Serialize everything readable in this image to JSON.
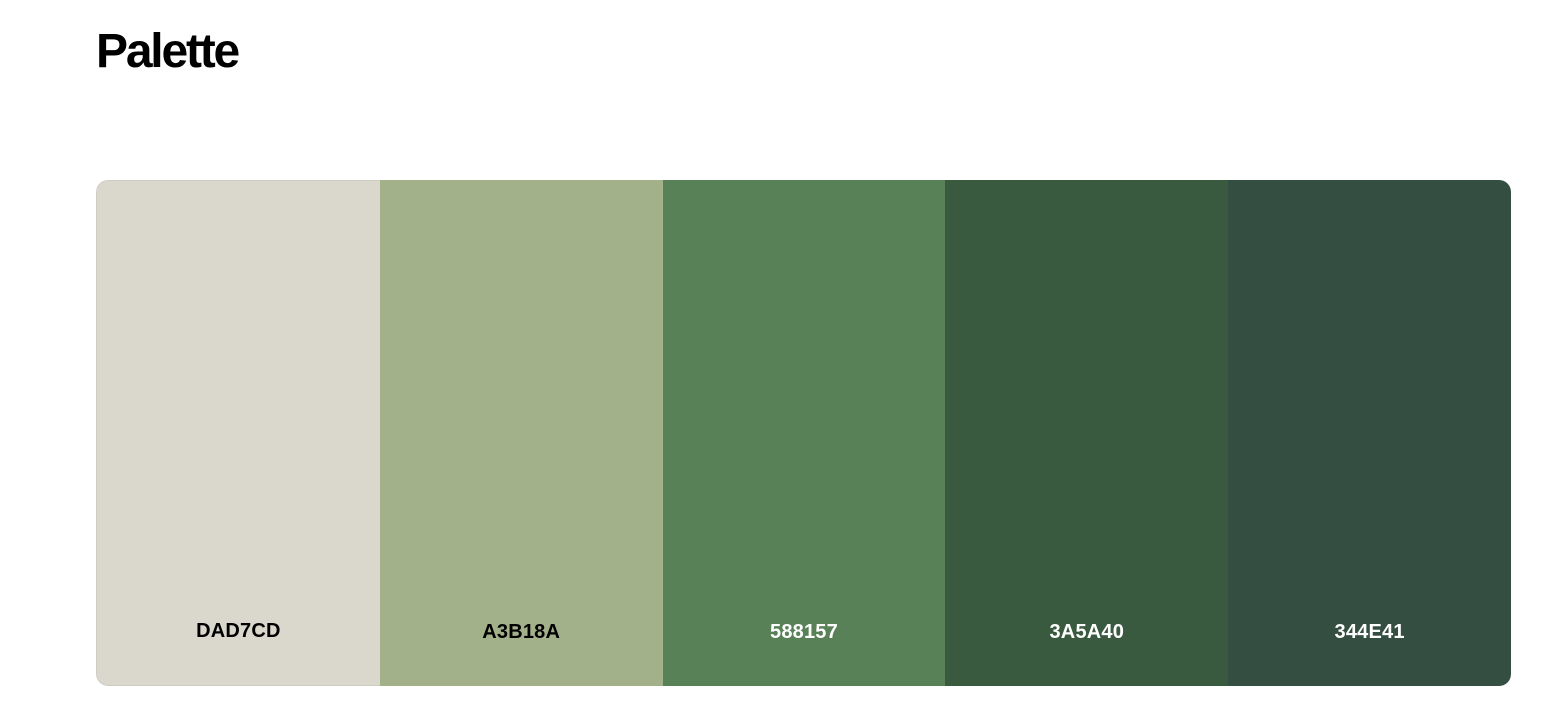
{
  "header": {
    "title": "Palette"
  },
  "palette": {
    "swatches": [
      {
        "hex": "DAD7CD",
        "color": "#DAD7CD",
        "text_color": "#000000"
      },
      {
        "hex": "A3B18A",
        "color": "#A3B18A",
        "text_color": "#000000"
      },
      {
        "hex": "588157",
        "color": "#588157",
        "text_color": "#ffffff"
      },
      {
        "hex": "3A5A40",
        "color": "#3A5A40",
        "text_color": "#ffffff"
      },
      {
        "hex": "344E41",
        "color": "#344E41",
        "text_color": "#ffffff"
      }
    ]
  }
}
